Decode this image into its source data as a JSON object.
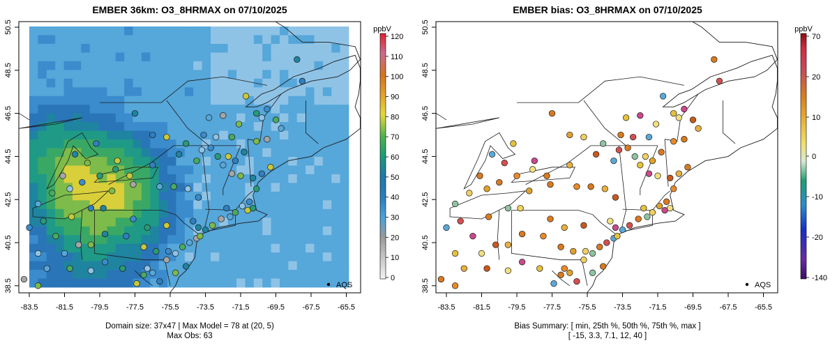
{
  "chart_data": [
    {
      "type": "heatmap",
      "title": "EMBER 36km: O3_8HRMAX on 07/10/2025",
      "x_ticks": [
        "-83.5",
        "-81.5",
        "-79.5",
        "-77.5",
        "-75.5",
        "-73.5",
        "-71.5",
        "-69.5",
        "-67.5",
        "-65.5"
      ],
      "y_ticks": [
        "38.5",
        "40.5",
        "42.5",
        "44.5",
        "46.5",
        "48.5",
        "50.5"
      ],
      "xlim": [
        -84.5,
        -65.0
      ],
      "ylim": [
        38.5,
        50.5
      ],
      "colorbar": {
        "unit": "ppbV",
        "ticks": [
          "0",
          "10",
          "20",
          "30",
          "40",
          "50",
          "60",
          "70",
          "80",
          "90",
          "100",
          "110",
          "120"
        ],
        "range": [
          0,
          120
        ]
      },
      "legend_label": "AQS",
      "footer_line1": "Domain size: 37x47 | Max Model = 78 at (20, 5)",
      "footer_line2": "Max Obs: 63"
    },
    {
      "type": "scatter",
      "title": "EMBER bias: O3_8HRMAX on 07/10/2025",
      "x_ticks": [
        "-83.5",
        "-81.5",
        "-79.5",
        "-77.5",
        "-75.5",
        "-73.5",
        "-71.5",
        "-69.5",
        "-67.5",
        "-65.5"
      ],
      "y_ticks": [
        "38.5",
        "40.5",
        "42.5",
        "44.5",
        "46.5",
        "48.5",
        "50.5"
      ],
      "xlim": [
        -84.5,
        -65.0
      ],
      "ylim": [
        38.5,
        50.5
      ],
      "colorbar": {
        "unit": "ppbV",
        "ticks": [
          "70",
          "20",
          "10",
          "0",
          "-10",
          "-20",
          "-140"
        ]
      },
      "legend_label": "AQS",
      "summary": {
        "min": -15,
        "p25": 3.3,
        "p50": 7.1,
        "p75": 12,
        "max": 40
      },
      "footer_line1": "Bias Summary: [ min, 25th %, 50th %, 75th %, max ]",
      "footer_line2": "[ -15,   3.3,   7.1,   12,   40 ]"
    }
  ]
}
